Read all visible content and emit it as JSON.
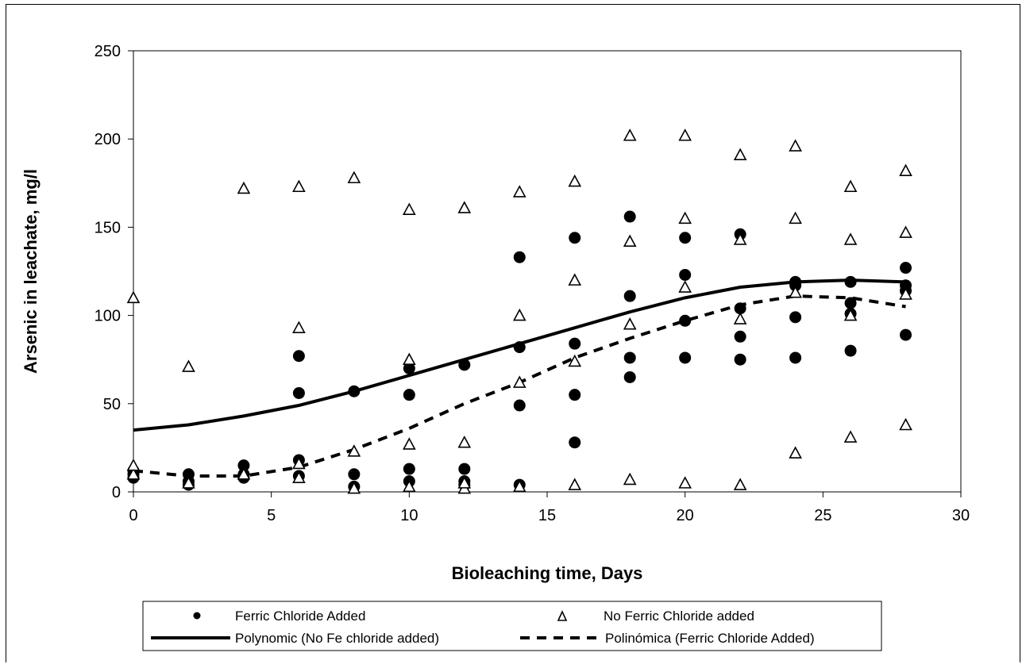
{
  "chart_data": {
    "type": "scatter",
    "xlabel": "Bioleaching time, Days",
    "ylabel": "Arsenic in leachate, mg/l",
    "xlim": [
      0,
      30
    ],
    "ylim": [
      0,
      250
    ],
    "x_ticks": [
      0,
      5,
      10,
      15,
      20,
      25,
      30
    ],
    "y_ticks": [
      0,
      50,
      100,
      150,
      200,
      250
    ],
    "grid": false,
    "legend_placement": "bottom",
    "series": [
      {
        "name": "Ferric Chloride Added",
        "kind": "points",
        "marker": "filled-circle",
        "points": [
          [
            0,
            8
          ],
          [
            0,
            10
          ],
          [
            0,
            12
          ],
          [
            2,
            4
          ],
          [
            2,
            6
          ],
          [
            2,
            10
          ],
          [
            4,
            8
          ],
          [
            4,
            10
          ],
          [
            4,
            15
          ],
          [
            6,
            9
          ],
          [
            6,
            18
          ],
          [
            6,
            56
          ],
          [
            6,
            77
          ],
          [
            8,
            3
          ],
          [
            8,
            10
          ],
          [
            8,
            57
          ],
          [
            10,
            6
          ],
          [
            10,
            13
          ],
          [
            10,
            55
          ],
          [
            10,
            70
          ],
          [
            12,
            4
          ],
          [
            12,
            6
          ],
          [
            12,
            13
          ],
          [
            12,
            72
          ],
          [
            14,
            4
          ],
          [
            14,
            49
          ],
          [
            14,
            82
          ],
          [
            14,
            133
          ],
          [
            16,
            28
          ],
          [
            16,
            55
          ],
          [
            16,
            84
          ],
          [
            16,
            144
          ],
          [
            18,
            65
          ],
          [
            18,
            76
          ],
          [
            18,
            111
          ],
          [
            18,
            156
          ],
          [
            20,
            76
          ],
          [
            20,
            97
          ],
          [
            20,
            123
          ],
          [
            20,
            144
          ],
          [
            22,
            75
          ],
          [
            22,
            88
          ],
          [
            22,
            104
          ],
          [
            22,
            146
          ],
          [
            24,
            76
          ],
          [
            24,
            99
          ],
          [
            24,
            117
          ],
          [
            24,
            119
          ],
          [
            26,
            80
          ],
          [
            26,
            101
          ],
          [
            26,
            107
          ],
          [
            26,
            119
          ],
          [
            28,
            89
          ],
          [
            28,
            114
          ],
          [
            28,
            117
          ],
          [
            28,
            127
          ]
        ]
      },
      {
        "name": "No Ferric Chloride added",
        "kind": "points",
        "marker": "open-triangle",
        "points": [
          [
            0,
            10
          ],
          [
            0,
            15
          ],
          [
            0,
            110
          ],
          [
            2,
            5
          ],
          [
            2,
            71
          ],
          [
            4,
            10
          ],
          [
            4,
            172
          ],
          [
            6,
            8
          ],
          [
            6,
            16
          ],
          [
            6,
            93
          ],
          [
            6,
            173
          ],
          [
            8,
            2
          ],
          [
            8,
            23
          ],
          [
            8,
            178
          ],
          [
            10,
            3
          ],
          [
            10,
            27
          ],
          [
            10,
            75
          ],
          [
            10,
            160
          ],
          [
            12,
            2
          ],
          [
            12,
            5
          ],
          [
            12,
            28
          ],
          [
            12,
            161
          ],
          [
            14,
            3
          ],
          [
            14,
            62
          ],
          [
            14,
            100
          ],
          [
            14,
            170
          ],
          [
            16,
            4
          ],
          [
            16,
            74
          ],
          [
            16,
            120
          ],
          [
            16,
            176
          ],
          [
            18,
            7
          ],
          [
            18,
            95
          ],
          [
            18,
            142
          ],
          [
            18,
            202
          ],
          [
            20,
            5
          ],
          [
            20,
            116
          ],
          [
            20,
            155
          ],
          [
            20,
            202
          ],
          [
            22,
            4
          ],
          [
            22,
            98
          ],
          [
            22,
            143
          ],
          [
            22,
            191
          ],
          [
            24,
            22
          ],
          [
            24,
            113
          ],
          [
            24,
            155
          ],
          [
            24,
            196
          ],
          [
            26,
            31
          ],
          [
            26,
            100
          ],
          [
            26,
            143
          ],
          [
            26,
            173
          ],
          [
            28,
            38
          ],
          [
            28,
            112
          ],
          [
            28,
            147
          ],
          [
            28,
            182
          ]
        ]
      },
      {
        "name": "Polynomic (No Fe chloride added)",
        "kind": "line",
        "style": "solid",
        "points": [
          [
            0,
            35
          ],
          [
            2,
            38
          ],
          [
            4,
            43
          ],
          [
            6,
            49
          ],
          [
            8,
            57
          ],
          [
            10,
            66
          ],
          [
            12,
            75
          ],
          [
            14,
            84
          ],
          [
            16,
            93
          ],
          [
            18,
            102
          ],
          [
            20,
            110
          ],
          [
            22,
            116
          ],
          [
            24,
            119
          ],
          [
            26,
            120
          ],
          [
            28,
            119
          ]
        ]
      },
      {
        "name": "Polinómica (Ferric Chloride Added)",
        "kind": "line",
        "style": "dashed",
        "points": [
          [
            0,
            12
          ],
          [
            2,
            9
          ],
          [
            4,
            9
          ],
          [
            6,
            14
          ],
          [
            8,
            24
          ],
          [
            10,
            36
          ],
          [
            12,
            50
          ],
          [
            14,
            62
          ],
          [
            16,
            76
          ],
          [
            18,
            87
          ],
          [
            20,
            97
          ],
          [
            22,
            106
          ],
          [
            24,
            111
          ],
          [
            26,
            110
          ],
          [
            28,
            105
          ]
        ]
      }
    ]
  }
}
